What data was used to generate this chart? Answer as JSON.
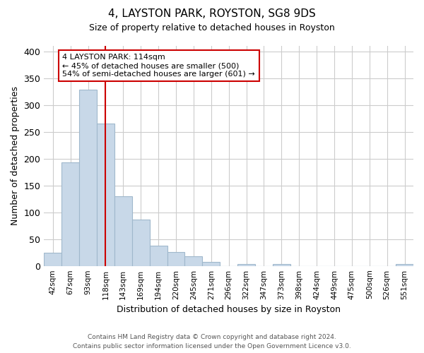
{
  "title": "4, LAYSTON PARK, ROYSTON, SG8 9DS",
  "subtitle": "Size of property relative to detached houses in Royston",
  "xlabel": "Distribution of detached houses by size in Royston",
  "ylabel": "Number of detached properties",
  "bin_labels": [
    "42sqm",
    "67sqm",
    "93sqm",
    "118sqm",
    "143sqm",
    "169sqm",
    "194sqm",
    "220sqm",
    "245sqm",
    "271sqm",
    "296sqm",
    "322sqm",
    "347sqm",
    "373sqm",
    "398sqm",
    "424sqm",
    "449sqm",
    "475sqm",
    "500sqm",
    "526sqm",
    "551sqm"
  ],
  "bar_values": [
    25,
    193,
    328,
    265,
    130,
    86,
    38,
    26,
    18,
    8,
    0,
    4,
    0,
    4,
    0,
    0,
    0,
    0,
    0,
    0,
    3
  ],
  "bar_color": "#c8d8e8",
  "bar_edge_color": "#a0b8cc",
  "vline_x": 3,
  "vline_color": "#cc0000",
  "annotation_text": "4 LAYSTON PARK: 114sqm\n← 45% of detached houses are smaller (500)\n54% of semi-detached houses are larger (601) →",
  "annotation_box_color": "#ffffff",
  "annotation_box_edge": "#cc0000",
  "ylim": [
    0,
    410
  ],
  "yticks": [
    0,
    50,
    100,
    150,
    200,
    250,
    300,
    350,
    400
  ],
  "footer_line1": "Contains HM Land Registry data © Crown copyright and database right 2024.",
  "footer_line2": "Contains public sector information licensed under the Open Government Licence v3.0.",
  "bg_color": "#ffffff",
  "grid_color": "#cccccc"
}
